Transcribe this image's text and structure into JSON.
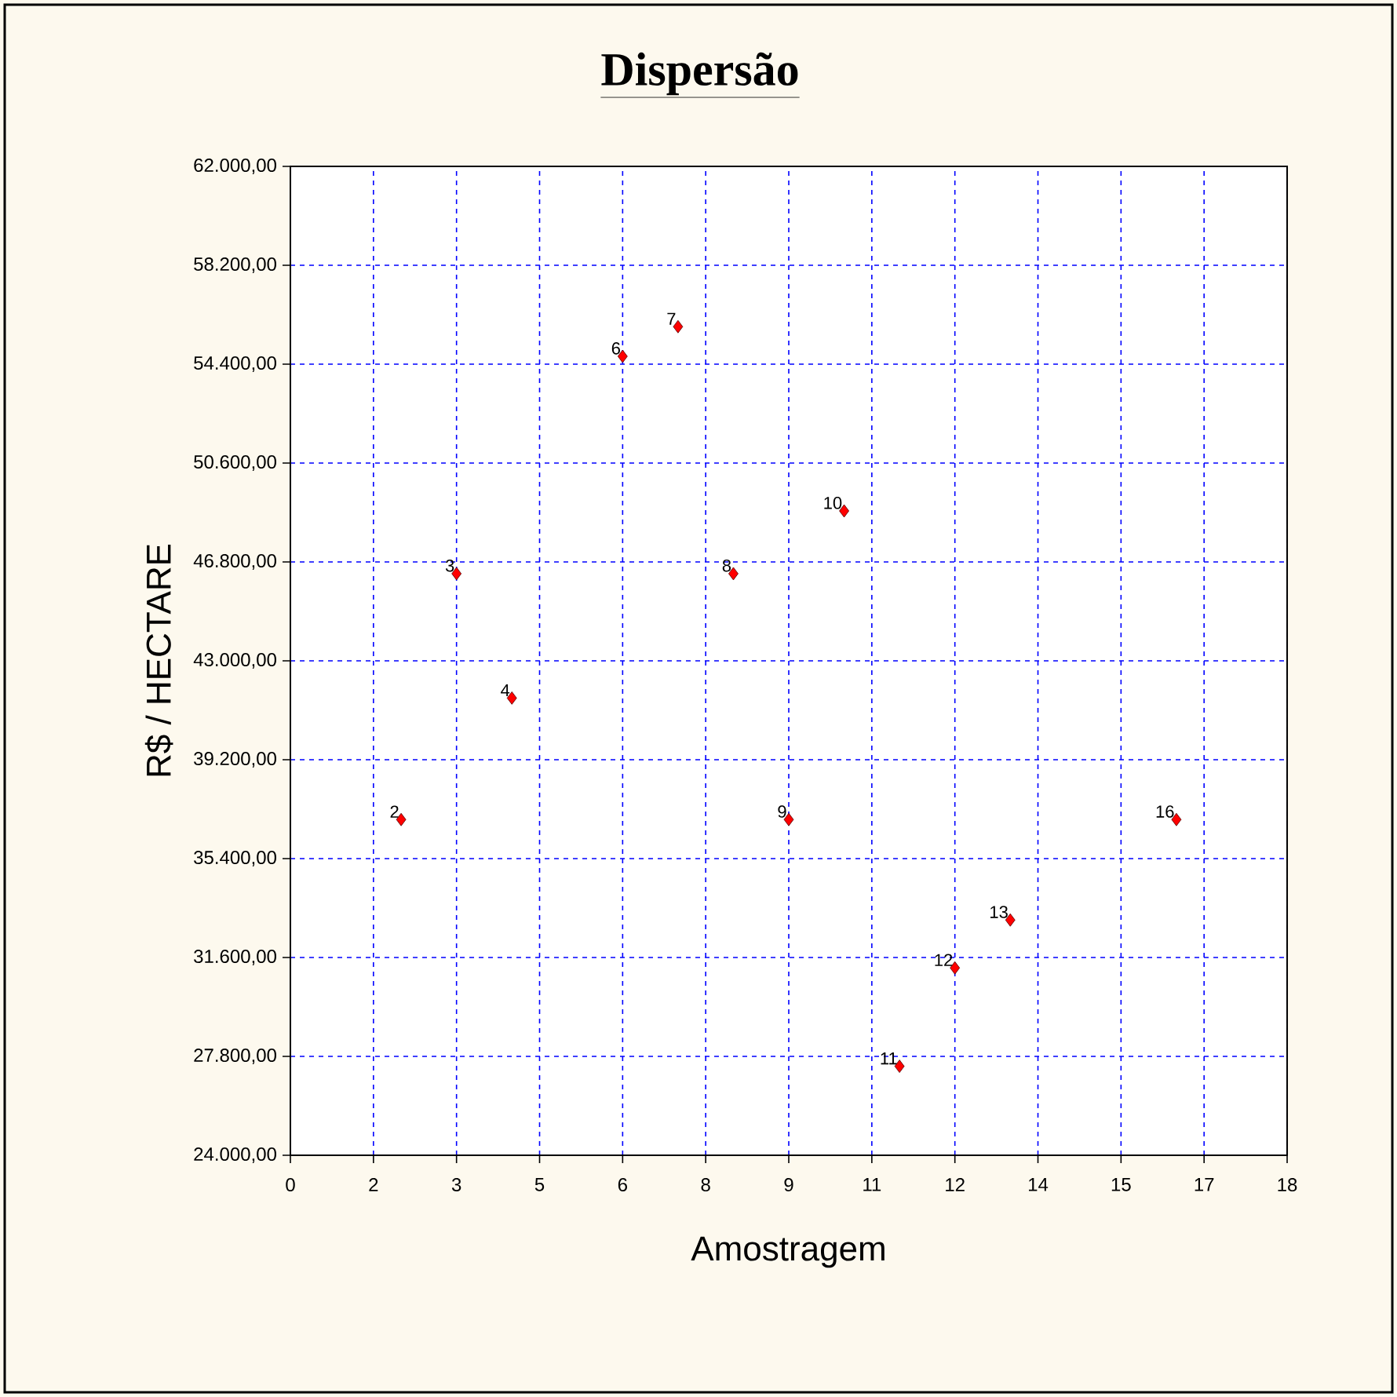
{
  "chart_data": {
    "type": "scatter",
    "title": "Dispersão",
    "xlabel": "Amostragem",
    "ylabel": "R$ / HECTARE",
    "x": [
      2,
      3,
      4,
      6,
      7,
      8,
      9,
      10,
      11,
      12,
      13,
      16
    ],
    "values": [
      36900,
      46350,
      41570,
      54700,
      55840,
      46350,
      36900,
      48760,
      27420,
      31200,
      33040,
      36900
    ],
    "color": "#ff0000",
    "marker": "diamond",
    "grid": true,
    "xlim": [
      0,
      18
    ],
    "xticks": [
      0,
      {
        "value": 1.5,
        "label": "2"
      },
      3,
      {
        "value": 4.5,
        "label": "5"
      },
      6,
      {
        "value": 7.5,
        "label": "8"
      },
      9,
      {
        "value": 10.5,
        "label": "11"
      },
      12,
      {
        "value": 13.5,
        "label": "14"
      },
      15,
      {
        "value": 16.5,
        "label": "17"
      },
      18
    ],
    "ylim": [
      24000,
      62000
    ],
    "yticks": [
      {
        "value": 24000,
        "label": "24.000,00"
      },
      {
        "value": 27800,
        "label": "27.800,00"
      },
      {
        "value": 31600,
        "label": "31.600,00"
      },
      {
        "value": 35400,
        "label": "35.400,00"
      },
      {
        "value": 39200,
        "label": "39.200,00"
      },
      {
        "value": 43000,
        "label": "43.000,00"
      },
      {
        "value": 46800,
        "label": "46.800,00"
      },
      {
        "value": 50600,
        "label": "50.600,00"
      },
      {
        "value": 54400,
        "label": "54.400,00"
      },
      {
        "value": 58200,
        "label": "58.200,00"
      },
      {
        "value": 62000,
        "label": "62.000,00"
      }
    ],
    "annotations": [
      {
        "text": "2",
        "x": 2,
        "y": 36900
      },
      {
        "text": "3",
        "x": 3,
        "y": 46350
      },
      {
        "text": "4",
        "x": 4,
        "y": 41570
      },
      {
        "text": "6",
        "x": 6,
        "y": 54700
      },
      {
        "text": "7",
        "x": 7,
        "y": 55840
      },
      {
        "text": "8",
        "x": 8,
        "y": 46350
      },
      {
        "text": "9",
        "x": 9,
        "y": 36900
      },
      {
        "text": "10",
        "x": 10,
        "y": 48760
      },
      {
        "text": "11",
        "x": 11,
        "y": 27420
      },
      {
        "text": "12",
        "x": 12,
        "y": 31200
      },
      {
        "text": "13",
        "x": 13,
        "y": 33040
      },
      {
        "text": "16",
        "x": 16,
        "y": 36900
      }
    ]
  }
}
